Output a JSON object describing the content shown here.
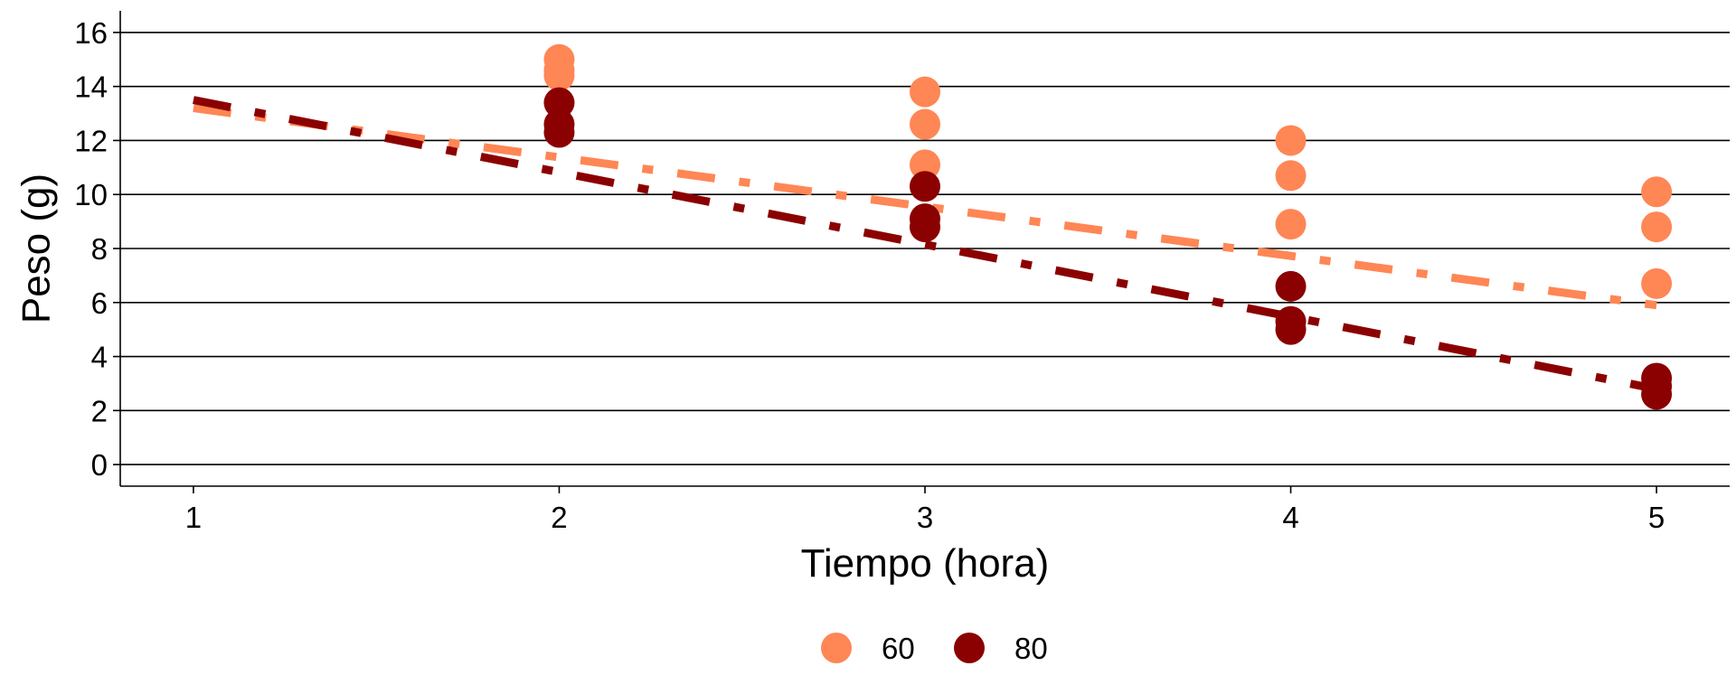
{
  "chart_data": {
    "type": "scatter",
    "xlabel": "Tiempo (hora)",
    "ylabel": "Peso (g)",
    "xlim": [
      0.8,
      5.2
    ],
    "ylim": [
      -0.8,
      16.8
    ],
    "x_ticks": [
      1,
      2,
      3,
      4,
      5
    ],
    "y_ticks": [
      0,
      2,
      4,
      6,
      8,
      10,
      12,
      14,
      16
    ],
    "grid": "horizontal major",
    "legend_position": "bottom",
    "series": [
      {
        "name": "60",
        "color": "#FF8655",
        "points": [
          {
            "x": 2,
            "y": 15.0
          },
          {
            "x": 2,
            "y": 14.6
          },
          {
            "x": 2,
            "y": 14.4
          },
          {
            "x": 3,
            "y": 13.8
          },
          {
            "x": 3,
            "y": 12.6
          },
          {
            "x": 3,
            "y": 11.1
          },
          {
            "x": 4,
            "y": 12.0
          },
          {
            "x": 4,
            "y": 10.7
          },
          {
            "x": 4,
            "y": 8.9
          },
          {
            "x": 5,
            "y": 10.1
          },
          {
            "x": 5,
            "y": 8.8
          },
          {
            "x": 5,
            "y": 6.7
          }
        ],
        "fit": {
          "x": [
            1,
            5
          ],
          "y": [
            13.2,
            5.9
          ]
        }
      },
      {
        "name": "80",
        "color": "#8B0000",
        "points": [
          {
            "x": 2,
            "y": 13.4
          },
          {
            "x": 2,
            "y": 12.6
          },
          {
            "x": 2,
            "y": 12.3
          },
          {
            "x": 3,
            "y": 10.3
          },
          {
            "x": 3,
            "y": 9.1
          },
          {
            "x": 3,
            "y": 8.8
          },
          {
            "x": 4,
            "y": 6.6
          },
          {
            "x": 4,
            "y": 5.3
          },
          {
            "x": 4,
            "y": 5.0
          },
          {
            "x": 5,
            "y": 3.2
          },
          {
            "x": 5,
            "y": 2.9
          },
          {
            "x": 5,
            "y": 2.6
          }
        ],
        "fit": {
          "x": [
            1,
            5
          ],
          "y": [
            13.5,
            2.8
          ]
        }
      }
    ]
  }
}
